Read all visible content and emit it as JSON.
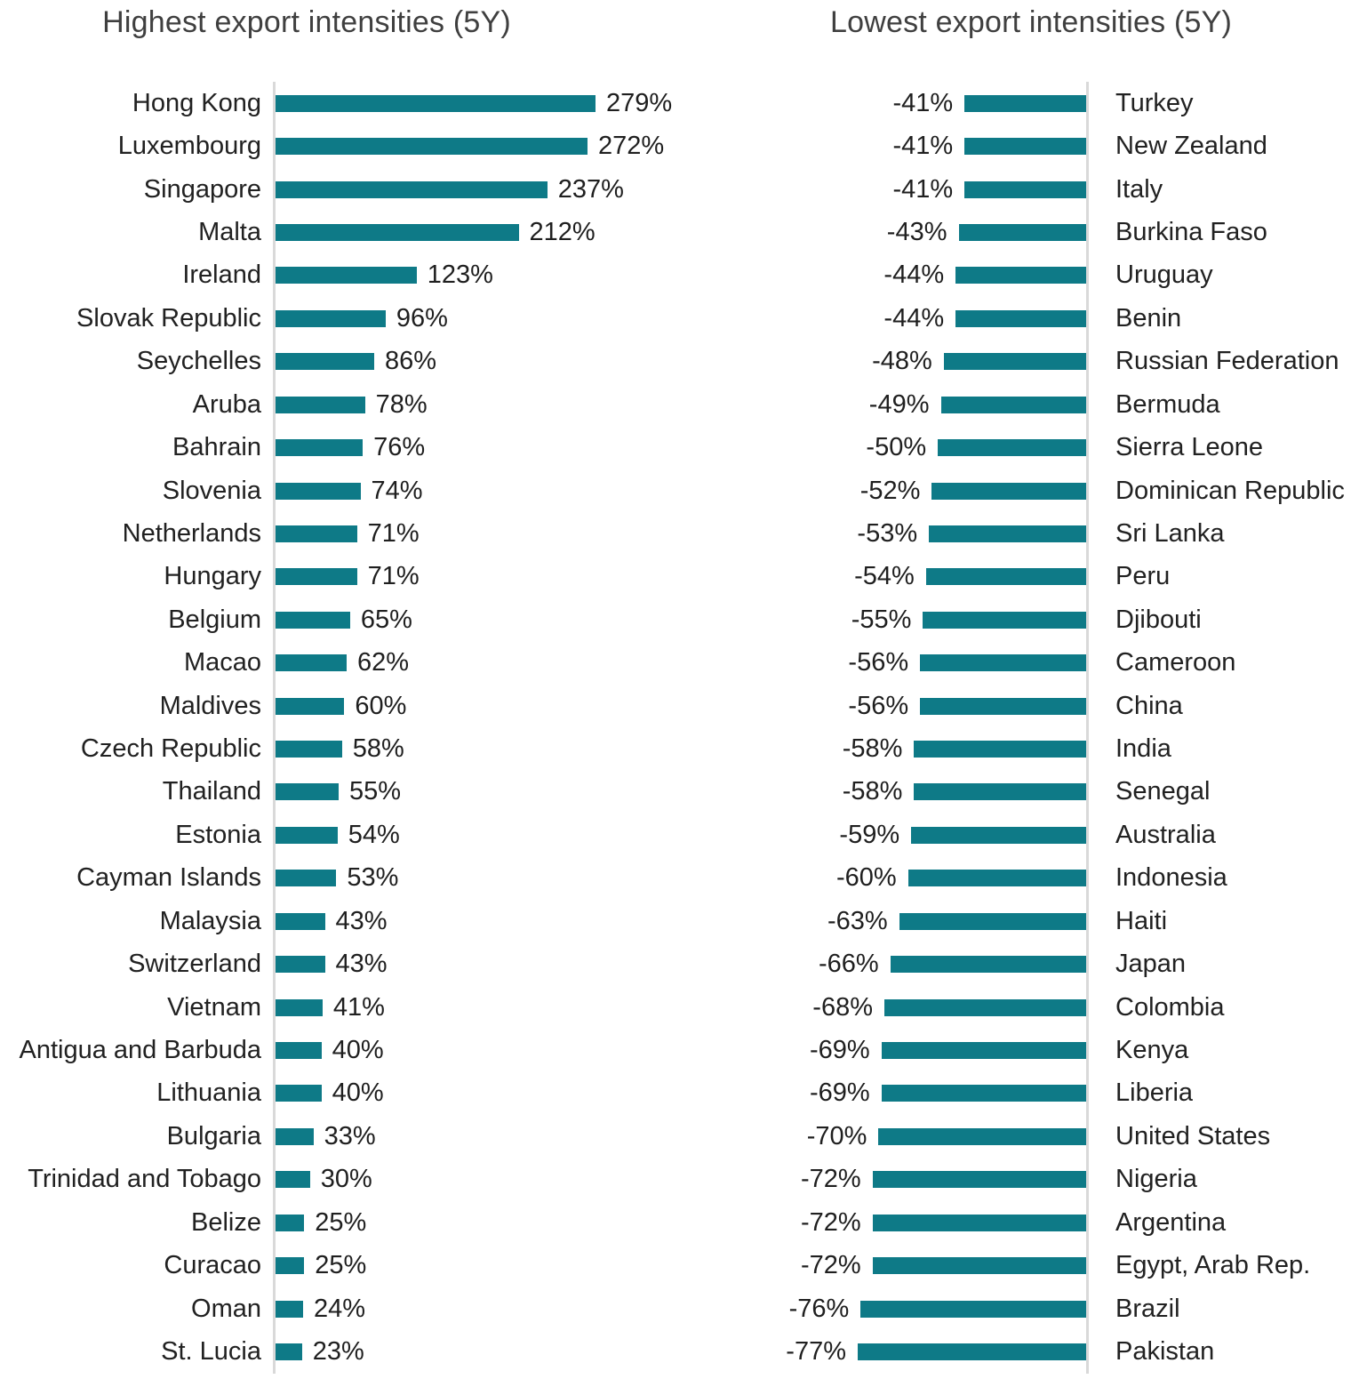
{
  "colors": {
    "bar": "#0e7a87",
    "axis_line": "#d9d9d9",
    "title_text": "#3f3f3f",
    "label_text": "#212121"
  },
  "chart_data": [
    {
      "type": "bar",
      "orientation": "horizontal",
      "title": "Highest export intensities (5Y)",
      "unit": "%",
      "grid": false,
      "legend": false,
      "value_label_position": "outside-end-right",
      "xlim": [
        0,
        279
      ],
      "categories": [
        "Hong Kong",
        "Luxembourg",
        "Singapore",
        "Malta",
        "Ireland",
        "Slovak Republic",
        "Seychelles",
        "Aruba",
        "Bahrain",
        "Slovenia",
        "Netherlands",
        "Hungary",
        "Belgium",
        "Macao",
        "Maldives",
        "Czech Republic",
        "Thailand",
        "Estonia",
        "Cayman Islands",
        "Malaysia",
        "Switzerland",
        "Vietnam",
        "Antigua and Barbuda",
        "Lithuania",
        "Bulgaria",
        "Trinidad and Tobago",
        "Belize",
        "Curacao",
        "Oman",
        "St. Lucia"
      ],
      "values": [
        279,
        272,
        237,
        212,
        123,
        96,
        86,
        78,
        76,
        74,
        71,
        71,
        65,
        62,
        60,
        58,
        55,
        54,
        53,
        43,
        43,
        41,
        40,
        40,
        33,
        30,
        25,
        25,
        24,
        23
      ]
    },
    {
      "type": "bar",
      "orientation": "horizontal",
      "title": "Lowest export intensities (5Y)",
      "unit": "%",
      "grid": false,
      "legend": false,
      "value_label_position": "outside-end-left",
      "xlim": [
        -77,
        0
      ],
      "categories": [
        "Turkey",
        "New Zealand",
        "Italy",
        "Burkina Faso",
        "Uruguay",
        "Benin",
        "Russian Federation",
        "Bermuda",
        "Sierra Leone",
        "Dominican Republic",
        "Sri Lanka",
        "Peru",
        "Djibouti",
        "Cameroon",
        "China",
        "India",
        "Senegal",
        "Australia",
        "Indonesia",
        "Haiti",
        "Japan",
        "Colombia",
        "Kenya",
        "Liberia",
        "United States",
        "Nigeria",
        "Argentina",
        "Egypt, Arab Rep.",
        "Brazil",
        "Pakistan"
      ],
      "values": [
        -41,
        -41,
        -41,
        -43,
        -44,
        -44,
        -48,
        -49,
        -50,
        -52,
        -53,
        -54,
        -55,
        -56,
        -56,
        -58,
        -58,
        -59,
        -60,
        -63,
        -66,
        -68,
        -69,
        -69,
        -70,
        -72,
        -72,
        -72,
        -76,
        -77
      ]
    }
  ]
}
